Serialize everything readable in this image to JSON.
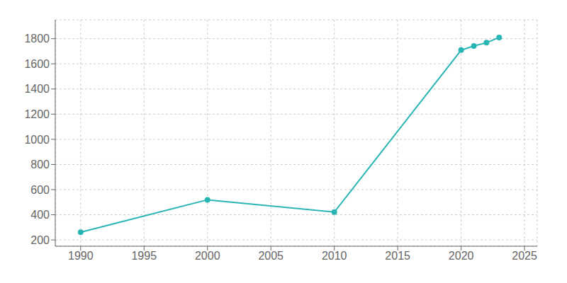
{
  "chart_data": {
    "type": "line",
    "x": [
      1990,
      2000,
      2010,
      2020,
      2021,
      2022,
      2023
    ],
    "values": [
      261,
      519,
      421,
      1709,
      1742,
      1768,
      1810
    ],
    "color": "#2ab5b5",
    "marker": "circle",
    "xlim": [
      1988,
      2026
    ],
    "ylim": [
      150,
      1950
    ],
    "xticks": [
      1990,
      1995,
      2000,
      2005,
      2010,
      2015,
      2020,
      2025
    ],
    "yticks": [
      200,
      400,
      600,
      800,
      1000,
      1200,
      1400,
      1600,
      1800
    ],
    "grid": true
  }
}
